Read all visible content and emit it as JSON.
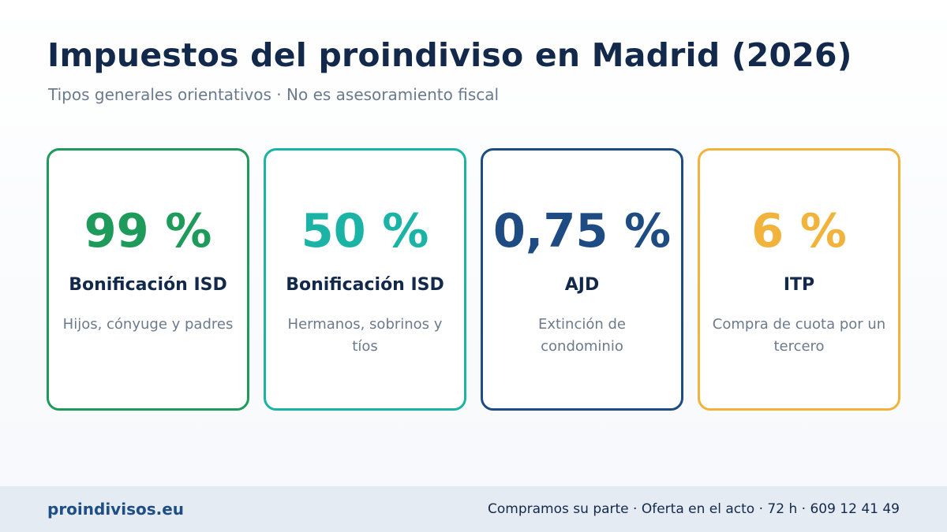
{
  "header": {
    "title": "Impuestos del proindiviso en Madrid (2026)",
    "subtitle": "Tipos generales orientativos · No es asesoramiento fiscal"
  },
  "cards": [
    {
      "value": "99 %",
      "label": "Bonificación ISD",
      "description": "Hijos, cónyuge y padres",
      "color": "#1e9a5a"
    },
    {
      "value": "50 %",
      "label": "Bonificación ISD",
      "description": "Hermanos, sobrinos y tíos",
      "color": "#1bb3a5"
    },
    {
      "value": "0,75 %",
      "label": "AJD",
      "description": "Extinción de condominio",
      "color": "#1d4b82"
    },
    {
      "value": "6 %",
      "label": "ITP",
      "description": "Compra de cuota por un tercero",
      "color": "#f2b33d"
    }
  ],
  "footer": {
    "brand": "proindivisos.eu",
    "tagline": "Compramos su parte · Oferta en el acto · 72 h · 609 12 41 49"
  }
}
